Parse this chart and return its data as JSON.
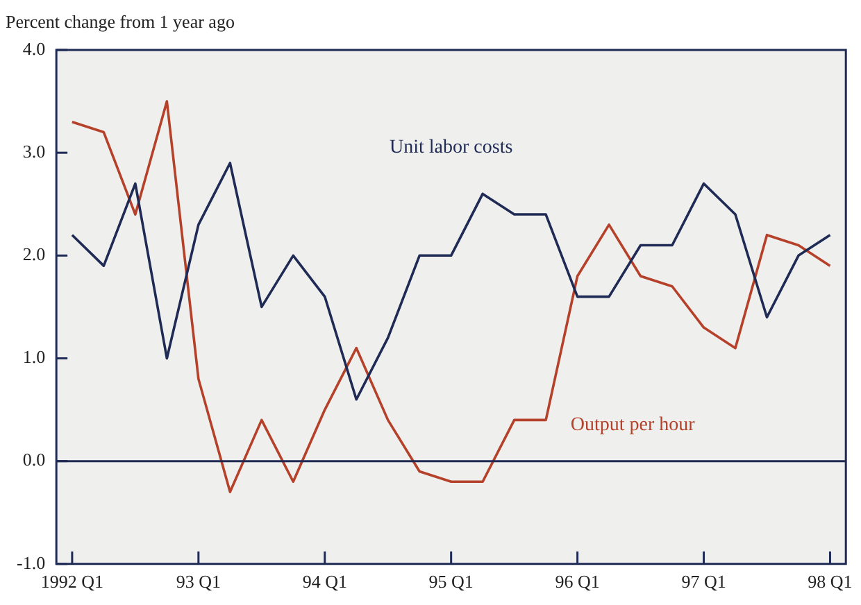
{
  "chart_data": {
    "type": "line",
    "ylabel": "Percent change from 1 year ago",
    "categories": [
      "1992 Q1",
      null,
      null,
      null,
      "93 Q1",
      null,
      null,
      null,
      "94 Q1",
      null,
      null,
      null,
      "95 Q1",
      null,
      null,
      null,
      "96 Q1",
      null,
      null,
      null,
      "97 Q1",
      null,
      null,
      null,
      "98 Q1"
    ],
    "series": [
      {
        "name": "Unit labor costs",
        "color": "#1f2a55",
        "values": [
          2.2,
          1.9,
          2.7,
          1.0,
          2.3,
          2.9,
          1.5,
          2.0,
          1.6,
          0.6,
          1.2,
          2.0,
          2.0,
          2.6,
          2.4,
          2.4,
          1.6,
          1.6,
          2.1,
          2.1,
          2.7,
          2.4,
          1.4,
          2.0,
          2.2
        ]
      },
      {
        "name": "Output per hour",
        "color": "#b5412a",
        "values": [
          3.3,
          3.2,
          2.4,
          3.5,
          0.8,
          -0.3,
          0.4,
          -0.2,
          0.5,
          1.1,
          0.4,
          -0.1,
          -0.2,
          -0.2,
          0.4,
          0.4,
          1.8,
          2.3,
          1.8,
          1.7,
          1.3,
          1.1,
          2.2,
          2.1,
          1.9
        ]
      }
    ],
    "ylim": [
      -1,
      4
    ],
    "yticks": [
      {
        "value": -1,
        "label": "-1.0"
      },
      {
        "value": 0,
        "label": "0.0"
      },
      {
        "value": 1,
        "label": "1.0"
      },
      {
        "value": 2,
        "label": "2.0"
      },
      {
        "value": 3,
        "label": "3.0"
      },
      {
        "value": 4,
        "label": "4.0"
      }
    ],
    "ref_lines": [
      {
        "axis": "y",
        "value": 0,
        "color": "#1f2a55"
      }
    ],
    "grid": false,
    "legend": false,
    "marker": "none",
    "line_style": "solid"
  }
}
